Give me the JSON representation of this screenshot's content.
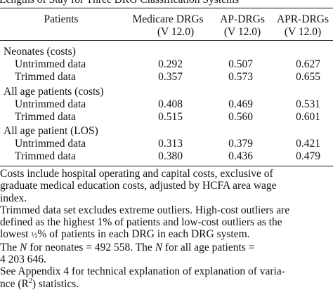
{
  "caption": "Lengths of Stay for Three DRG Classification Systems",
  "header": {
    "patients": "Patients",
    "columns": [
      {
        "name": "Medicare DRGs",
        "version": "(V 12.0)"
      },
      {
        "name": "AP-DRGs",
        "version": "(V 12.0)"
      },
      {
        "name": "APR-DRGs",
        "version": "(V 12.0)"
      }
    ]
  },
  "groups": [
    {
      "label": "Neonates (costs)",
      "rows": [
        {
          "label": "Untrimmed data",
          "values": [
            "0.292",
            "0.507",
            "0.627"
          ]
        },
        {
          "label": "Trimmed data",
          "values": [
            "0.357",
            "0.573",
            "0.655"
          ]
        }
      ]
    },
    {
      "label": "All age patients (costs)",
      "rows": [
        {
          "label": "Untrimmed data",
          "values": [
            "0.408",
            "0.469",
            "0.531"
          ]
        },
        {
          "label": "Trimmed data",
          "values": [
            "0.515",
            "0.560",
            "0.601"
          ]
        }
      ]
    },
    {
      "label": "All age patient (LOS)",
      "rows": [
        {
          "label": "Untrimmed data",
          "values": [
            "0.313",
            "0.379",
            "0.421"
          ]
        },
        {
          "label": "Trimmed data",
          "values": [
            "0.380",
            "0.436",
            "0.479"
          ]
        }
      ]
    }
  ],
  "notes": {
    "costs": [
      "Costs include hospital operating and capital costs, exclusive of",
      "graduate medical education costs, adjusted by HCFA area wage",
      "index."
    ],
    "trimmed": [
      "Trimmed data set excludes extreme outliers. High-cost outliers are",
      "defined as the highest 1% of patients and low-cost outliers as the"
    ],
    "trimmed_last_pre": "lowest ",
    "trimmed_last_frac": "½",
    "trimmed_last_post": "% of patients in each DRG in each DRG system.",
    "n_line1_pre": "The ",
    "n_symbol": "N",
    "n_line1_mid": " for neonates = 492 558. The ",
    "n_symbol2": "N",
    "n_line1_post": " for all age patients =",
    "n_line2": "4 203 646.",
    "appendix_line1": "See Appendix 4 for technical explanation of explanation of varia-",
    "appendix_pre": "nce (R",
    "appendix_sup": "2",
    "appendix_post": ") statistics."
  }
}
